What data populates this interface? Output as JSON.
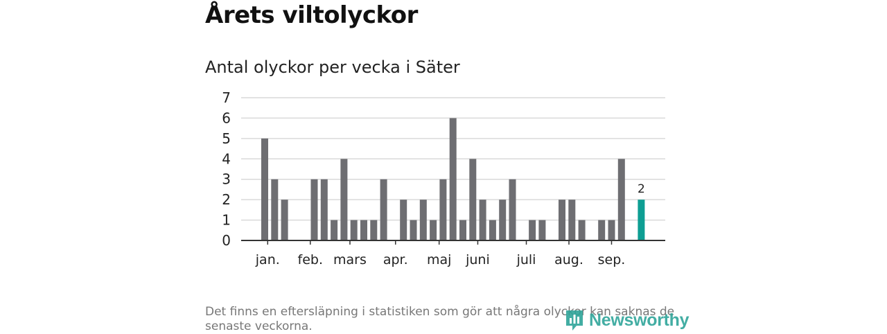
{
  "header": {
    "title": "Årets viltolyckor",
    "subtitle": "Antal olyckor per vecka i Säter"
  },
  "colors": {
    "bar": "#6e6e72",
    "highlight": "#0e9e93",
    "grid": "#d9d9d9",
    "axis": "#333333",
    "text": "#222222",
    "logo": "#2fa59a"
  },
  "chart_data": {
    "type": "bar",
    "title": "Antal olyckor per vecka i Säter",
    "xlabel": "",
    "ylabel": "",
    "ylim": [
      0,
      7
    ],
    "yticks": [
      "0",
      "1",
      "2",
      "3",
      "4",
      "5",
      "6",
      "7"
    ],
    "grid": true,
    "weeks": [
      1,
      2,
      3,
      4,
      5,
      6,
      7,
      8,
      9,
      10,
      11,
      12,
      13,
      14,
      15,
      16,
      17,
      18,
      19,
      20,
      21,
      22,
      23,
      24,
      25,
      26,
      27,
      28,
      29,
      30,
      31,
      32,
      33,
      34,
      35,
      36,
      37,
      38,
      39,
      40,
      41
    ],
    "values": [
      0,
      0,
      5,
      3,
      2,
      0,
      0,
      3,
      3,
      1,
      4,
      1,
      1,
      1,
      3,
      0,
      2,
      1,
      2,
      1,
      3,
      6,
      1,
      4,
      2,
      1,
      2,
      3,
      0,
      1,
      1,
      0,
      2,
      2,
      1,
      0,
      1,
      1,
      4,
      0,
      2
    ],
    "highlight_index": 40,
    "highlight_label": "2",
    "months": [
      {
        "label": "jan.",
        "week": 3.3
      },
      {
        "label": "feb.",
        "week": 7.6
      },
      {
        "label": "mars",
        "week": 11.6
      },
      {
        "label": "apr.",
        "week": 16.2
      },
      {
        "label": "maj",
        "week": 20.6
      },
      {
        "label": "juni",
        "week": 24.5
      },
      {
        "label": "juli",
        "week": 29.4
      },
      {
        "label": "aug.",
        "week": 33.7
      },
      {
        "label": "sep.",
        "week": 38.0
      }
    ]
  },
  "footer": {
    "note": "Det finns en eftersläpning i statistiken som gör att några olyckor kan saknas de senaste veckorna.",
    "logo_text": "Newsworthy"
  }
}
